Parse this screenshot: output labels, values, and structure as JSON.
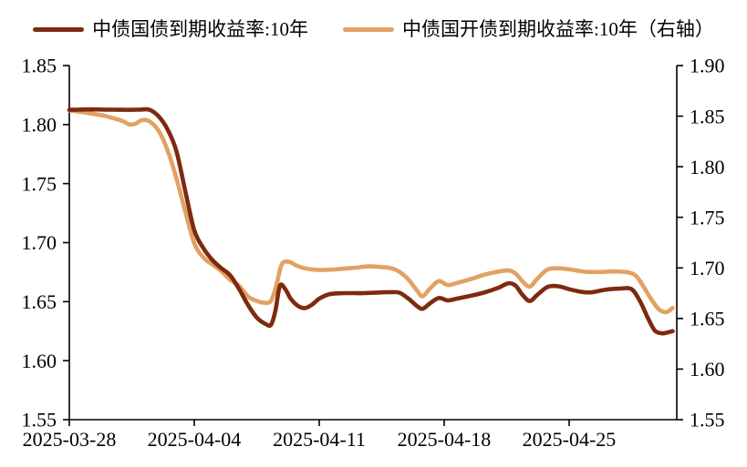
{
  "legend": {
    "items": [
      {
        "label": "中债国债到期收益率:10年",
        "color": "#7E2A10"
      },
      {
        "label": "中债国开债到期收益率:10年（右轴）",
        "color": "#E1A263"
      }
    ]
  },
  "chart_data": {
    "type": "line",
    "title": "",
    "grid": false,
    "legend_position": "top-center",
    "x_axis": {
      "tick_days": [
        0,
        7,
        14,
        21,
        28
      ],
      "tick_labels": [
        "2025-03-28",
        "2025-04-04",
        "2025-04-11",
        "2025-04-18",
        "2025-04-25"
      ],
      "day_span": 34.03
    },
    "left_axis": {
      "min": 1.55,
      "max": 1.85,
      "step": 0.05,
      "tick_labels": [
        "1.85",
        "1.80",
        "1.75",
        "1.70",
        "1.65",
        "1.60",
        "1.55"
      ]
    },
    "right_axis": {
      "min": 1.55,
      "max": 1.9,
      "step": 0.05,
      "tick_labels": [
        "1.90",
        "1.85",
        "1.80",
        "1.75",
        "1.70",
        "1.65",
        "1.60",
        "1.55"
      ]
    },
    "series": [
      {
        "name": "中债国开债到期收益率:10年（右轴）",
        "axis": "right",
        "color": "#E1A263",
        "points": [
          [
            0,
            1.8555
          ],
          [
            0.5,
            1.8545
          ],
          [
            1,
            1.8532
          ],
          [
            1.5,
            1.8518
          ],
          [
            2,
            1.8502
          ],
          [
            2.5,
            1.8478
          ],
          [
            3,
            1.845
          ],
          [
            3.35,
            1.8418
          ],
          [
            3.7,
            1.8425
          ],
          [
            4.1,
            1.8462
          ],
          [
            4.5,
            1.8448
          ],
          [
            5,
            1.8355
          ],
          [
            5.5,
            1.8165
          ],
          [
            6,
            1.7885
          ],
          [
            6.5,
            1.7555
          ],
          [
            7,
            1.7245
          ],
          [
            7.5,
            1.7105
          ],
          [
            8,
            1.7035
          ],
          [
            8.5,
            1.697
          ],
          [
            9,
            1.6885
          ],
          [
            9.5,
            1.6825
          ],
          [
            10,
            1.672
          ],
          [
            10.4,
            1.668
          ],
          [
            10.9,
            1.6655
          ],
          [
            11.3,
            1.6675
          ],
          [
            11.6,
            1.683
          ],
          [
            11.9,
            1.7035
          ],
          [
            12.3,
            1.706
          ],
          [
            12.7,
            1.7025
          ],
          [
            13.1,
            1.7
          ],
          [
            13.6,
            1.6985
          ],
          [
            14,
            1.698
          ],
          [
            14.6,
            1.6982
          ],
          [
            15.2,
            1.699
          ],
          [
            16,
            1.7002
          ],
          [
            16.8,
            1.7015
          ],
          [
            17.5,
            1.7008
          ],
          [
            18,
            1.6998
          ],
          [
            18.5,
            1.696
          ],
          [
            19,
            1.6885
          ],
          [
            19.5,
            1.677
          ],
          [
            19.8,
            1.672
          ],
          [
            20.2,
            1.6795
          ],
          [
            20.7,
            1.687
          ],
          [
            21.2,
            1.683
          ],
          [
            21.8,
            1.6855
          ],
          [
            22.5,
            1.689
          ],
          [
            23.3,
            1.6935
          ],
          [
            24,
            1.6962
          ],
          [
            24.6,
            1.6975
          ],
          [
            25,
            1.6945
          ],
          [
            25.4,
            1.6865
          ],
          [
            25.8,
            1.6815
          ],
          [
            26.2,
            1.689
          ],
          [
            26.8,
            1.6985
          ],
          [
            27.5,
            1.6995
          ],
          [
            28.2,
            1.698
          ],
          [
            29,
            1.696
          ],
          [
            29.8,
            1.696
          ],
          [
            30.6,
            1.6965
          ],
          [
            31.4,
            1.6952
          ],
          [
            31.8,
            1.691
          ],
          [
            32.2,
            1.6805
          ],
          [
            32.6,
            1.669
          ],
          [
            33,
            1.6595
          ],
          [
            33.3,
            1.6565
          ],
          [
            33.55,
            1.657
          ],
          [
            33.8,
            1.6605
          ]
        ]
      },
      {
        "name": "中债国债到期收益率:10年",
        "axis": "left",
        "color": "#7E2A10",
        "points": [
          [
            0,
            1.8125
          ],
          [
            0.5,
            1.8127
          ],
          [
            1,
            1.8128
          ],
          [
            1.5,
            1.8128
          ],
          [
            2,
            1.8127
          ],
          [
            2.5,
            1.8126
          ],
          [
            3,
            1.8125
          ],
          [
            3.5,
            1.8125
          ],
          [
            4,
            1.8127
          ],
          [
            4.5,
            1.8125
          ],
          [
            5,
            1.807
          ],
          [
            5.5,
            1.796
          ],
          [
            6,
            1.7775
          ],
          [
            6.5,
            1.7435
          ],
          [
            7,
            1.7105
          ],
          [
            7.5,
            1.6955
          ],
          [
            8,
            1.6855
          ],
          [
            8.5,
            1.6785
          ],
          [
            9,
            1.6725
          ],
          [
            9.5,
            1.661
          ],
          [
            10,
            1.6475
          ],
          [
            10.5,
            1.6365
          ],
          [
            11,
            1.631
          ],
          [
            11.3,
            1.6305
          ],
          [
            11.55,
            1.6425
          ],
          [
            11.8,
            1.6635
          ],
          [
            12.1,
            1.6605
          ],
          [
            12.4,
            1.6525
          ],
          [
            12.8,
            1.6465
          ],
          [
            13.2,
            1.6445
          ],
          [
            13.6,
            1.6475
          ],
          [
            14,
            1.6525
          ],
          [
            14.5,
            1.656
          ],
          [
            15,
            1.657
          ],
          [
            15.5,
            1.6572
          ],
          [
            16,
            1.6572
          ],
          [
            16.5,
            1.6572
          ],
          [
            17,
            1.6575
          ],
          [
            17.5,
            1.6578
          ],
          [
            18,
            1.658
          ],
          [
            18.5,
            1.6575
          ],
          [
            19,
            1.6525
          ],
          [
            19.5,
            1.646
          ],
          [
            19.8,
            1.644
          ],
          [
            20.2,
            1.6485
          ],
          [
            20.7,
            1.653
          ],
          [
            21.2,
            1.651
          ],
          [
            21.7,
            1.6525
          ],
          [
            22.5,
            1.655
          ],
          [
            23.3,
            1.658
          ],
          [
            24,
            1.6615
          ],
          [
            24.6,
            1.6655
          ],
          [
            25,
            1.6635
          ],
          [
            25.4,
            1.6555
          ],
          [
            25.8,
            1.6505
          ],
          [
            26.2,
            1.6555
          ],
          [
            26.8,
            1.6625
          ],
          [
            27.4,
            1.663
          ],
          [
            28,
            1.6605
          ],
          [
            28.6,
            1.6585
          ],
          [
            29.2,
            1.6578
          ],
          [
            30,
            1.66
          ],
          [
            30.8,
            1.661
          ],
          [
            31.5,
            1.6605
          ],
          [
            32,
            1.6495
          ],
          [
            32.4,
            1.6365
          ],
          [
            32.8,
            1.6255
          ],
          [
            33.2,
            1.6232
          ],
          [
            33.5,
            1.6238
          ],
          [
            33.8,
            1.625
          ]
        ]
      }
    ]
  }
}
